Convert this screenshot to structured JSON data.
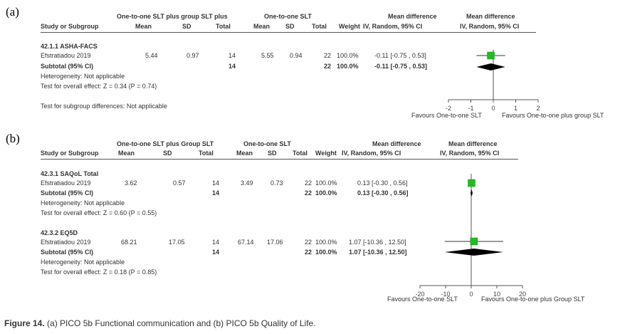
{
  "chart_data": [
    {
      "type": "forest",
      "panel": "(a)",
      "headers": {
        "study": "Study or Subgroup",
        "group1": "One-to-one SLT plus group SLT plus",
        "group2": "One-to-one SLT",
        "mean": "Mean",
        "sd": "SD",
        "total": "Total",
        "weight": "Weight",
        "md": "Mean difference",
        "md_sub": "IV, Random, 95% CI",
        "plot_title": "Mean difference",
        "plot_sub": "IV, Random, 95% CI"
      },
      "subgroups": [
        {
          "title": "42.1.1 ASHA-FACS",
          "studies": [
            {
              "name": "Efstratiadou 2019",
              "mean1": "5.44",
              "sd1": "0.97",
              "n1": "14",
              "mean2": "5.55",
              "sd2": "0.94",
              "n2": "22",
              "weight": "100.0%",
              "ci_text": "-0.11 [-0.75 , 0.53]",
              "md": -0.11,
              "lo": -0.75,
              "hi": 0.53
            }
          ],
          "subtotal": {
            "label": "Subtotal (95% CI)",
            "n1": "14",
            "n2": "22",
            "weight": "100.0%",
            "ci_text": "-0.11 [-0.75 , 0.53]",
            "md": -0.11,
            "lo": -0.75,
            "hi": 0.53
          },
          "heterogeneity": "Heterogeneity: Not applicable",
          "overall": "Test for overall effect: Z = 0.34 (P = 0.74)"
        }
      ],
      "subgroup_diff": "Test for subgroup differences: Not applicable",
      "axis": {
        "min": -2,
        "max": 2,
        "ticks": [
          "-2",
          "-1",
          "0",
          "1",
          "2"
        ]
      },
      "favours_left": "Favours One-to-one SLT",
      "favours_right": "Favours One-to-one plus group SLT"
    },
    {
      "type": "forest",
      "panel": "(b)",
      "headers": {
        "study": "Study or Subgroup",
        "group1": "One-to-one SLT plus Group SLT",
        "group2": "One-to-one SLT",
        "mean": "Mean",
        "sd": "SD",
        "total": "Total",
        "weight": "Weight",
        "md": "Mean difference",
        "md_sub": "IV, Random, 95% CI",
        "plot_title": "Mean difference",
        "plot_sub": "IV, Random, 95% CI"
      },
      "subgroups": [
        {
          "title": "42.3.1 SAQoL Total",
          "studies": [
            {
              "name": "Efstratiadou 2019",
              "mean1": "3.62",
              "sd1": "0.57",
              "n1": "14",
              "mean2": "3.49",
              "sd2": "0.73",
              "n2": "22",
              "weight": "100.0%",
              "ci_text": "0.13 [-0.30 , 0.56]",
              "md": 0.13,
              "lo": -0.3,
              "hi": 0.56
            }
          ],
          "subtotal": {
            "label": "Subtotal (95% CI)",
            "n1": "14",
            "n2": "22",
            "weight": "100.0%",
            "ci_text": "0.13 [-0.30 , 0.56]",
            "md": 0.13,
            "lo": -0.3,
            "hi": 0.56
          },
          "heterogeneity": "Heterogeneity: Not applicable",
          "overall": "Test for overall effect: Z = 0.60 (P = 0.55)"
        },
        {
          "title": "42.3.2 EQ5D",
          "studies": [
            {
              "name": "Efstratiadou 2019",
              "mean1": "68.21",
              "sd1": "17.05",
              "n1": "14",
              "mean2": "67.14",
              "sd2": "17.06",
              "n2": "22",
              "weight": "100.0%",
              "ci_text": "1.07 [-10.36 , 12.50]",
              "md": 1.07,
              "lo": -10.36,
              "hi": 12.5
            }
          ],
          "subtotal": {
            "label": "Subtotal (95% CI)",
            "n1": "14",
            "n2": "22",
            "weight": "100.0%",
            "ci_text": "1.07 [-10.36 , 12.50]",
            "md": 1.07,
            "lo": -10.36,
            "hi": 12.5
          },
          "heterogeneity": "Heterogeneity: Not applicable",
          "overall": "Test for overall effect: Z = 0.18 (P = 0.85)"
        }
      ],
      "axis": {
        "min": -20,
        "max": 20,
        "ticks": [
          "-20",
          "-10",
          "0",
          "10",
          "20"
        ]
      },
      "favours_left": "Favours One-to-one SLT",
      "favours_right": "Favours One-to-one plus Group SLT"
    }
  ],
  "colors": {
    "marker": "#22bb22",
    "diamond": "#000000",
    "axis": "#555555"
  },
  "caption": {
    "label": "Figure 14.",
    "text": "(a) PICO 5b Functional communication and (b) PICO 5b Quality of Life."
  }
}
